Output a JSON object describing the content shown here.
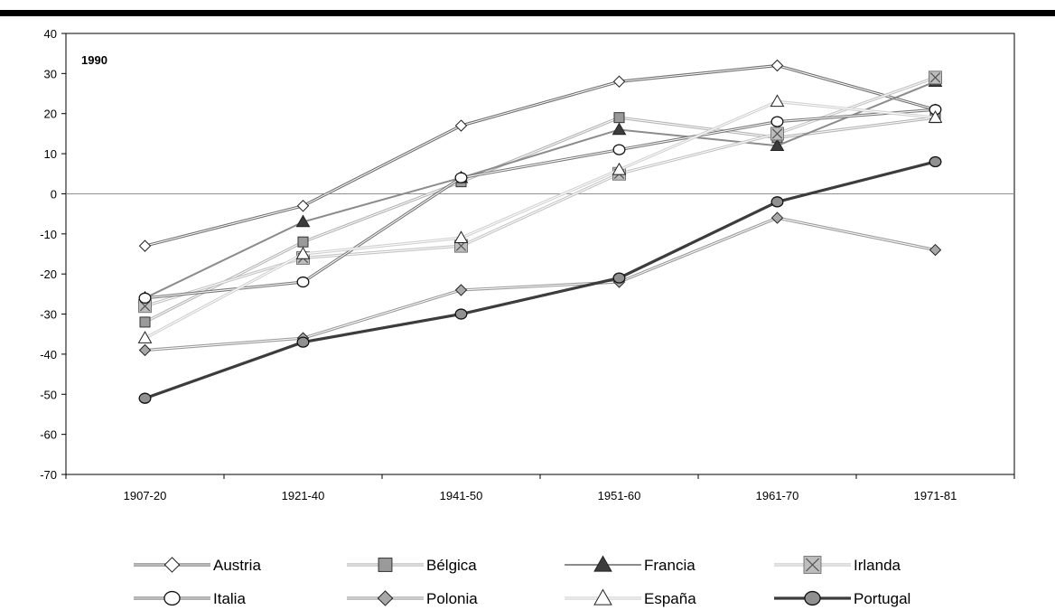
{
  "chart_data": {
    "type": "line",
    "annotation": "1990",
    "categories": [
      "1907-20",
      "1921-40",
      "1941-50",
      "1951-60",
      "1961-70",
      "1971-81"
    ],
    "ylim": [
      -70,
      40
    ],
    "yticks": [
      40,
      30,
      20,
      10,
      0,
      -10,
      -20,
      -30,
      -40,
      -50,
      -60,
      -70
    ],
    "grid": false,
    "zero_line": true,
    "legend_position": "bottom",
    "series": [
      {
        "name": "Austria",
        "values": [
          -13,
          -3,
          17,
          28,
          32,
          21
        ],
        "color": "#707070",
        "marker": "diamond",
        "marker_fill": "#ffffff",
        "style": "double"
      },
      {
        "name": "Bélgica",
        "values": [
          -32,
          -12,
          3,
          19,
          14,
          19
        ],
        "color": "#b5b5b5",
        "marker": "square",
        "marker_fill": "#9a9a9a",
        "style": "double"
      },
      {
        "name": "Francia",
        "values": [
          -26,
          -7,
          4,
          16,
          12,
          28
        ],
        "color": "#8c8c8c",
        "marker": "triangle",
        "marker_fill": "#3c3c3c",
        "style": "solid"
      },
      {
        "name": "Irlanda",
        "values": [
          -28,
          -16,
          -13,
          5,
          15,
          29
        ],
        "color": "#c4c4c4",
        "marker": "xbox",
        "marker_fill": "#bdbdbd",
        "style": "double"
      },
      {
        "name": "Italia",
        "values": [
          -26,
          -22,
          4,
          11,
          18,
          21
        ],
        "color": "#7a7a7a",
        "marker": "circle",
        "marker_fill": "#ffffff",
        "style": "double"
      },
      {
        "name": "Polonia",
        "values": [
          -39,
          -36,
          -24,
          -22,
          -6,
          -14
        ],
        "color": "#9a9a9a",
        "marker": "diamond",
        "marker_fill": "#a8a8a8",
        "style": "double"
      },
      {
        "name": "España",
        "values": [
          -36,
          -15,
          -11,
          6,
          23,
          19
        ],
        "color": "#d0d0d0",
        "marker": "triangle",
        "marker_fill": "#ffffff",
        "style": "double"
      },
      {
        "name": "Portugal",
        "values": [
          -51,
          -37,
          -30,
          -21,
          -2,
          8
        ],
        "color": "#3c3c3c",
        "marker": "circle",
        "marker_fill": "#909090",
        "style": "solid"
      }
    ]
  }
}
